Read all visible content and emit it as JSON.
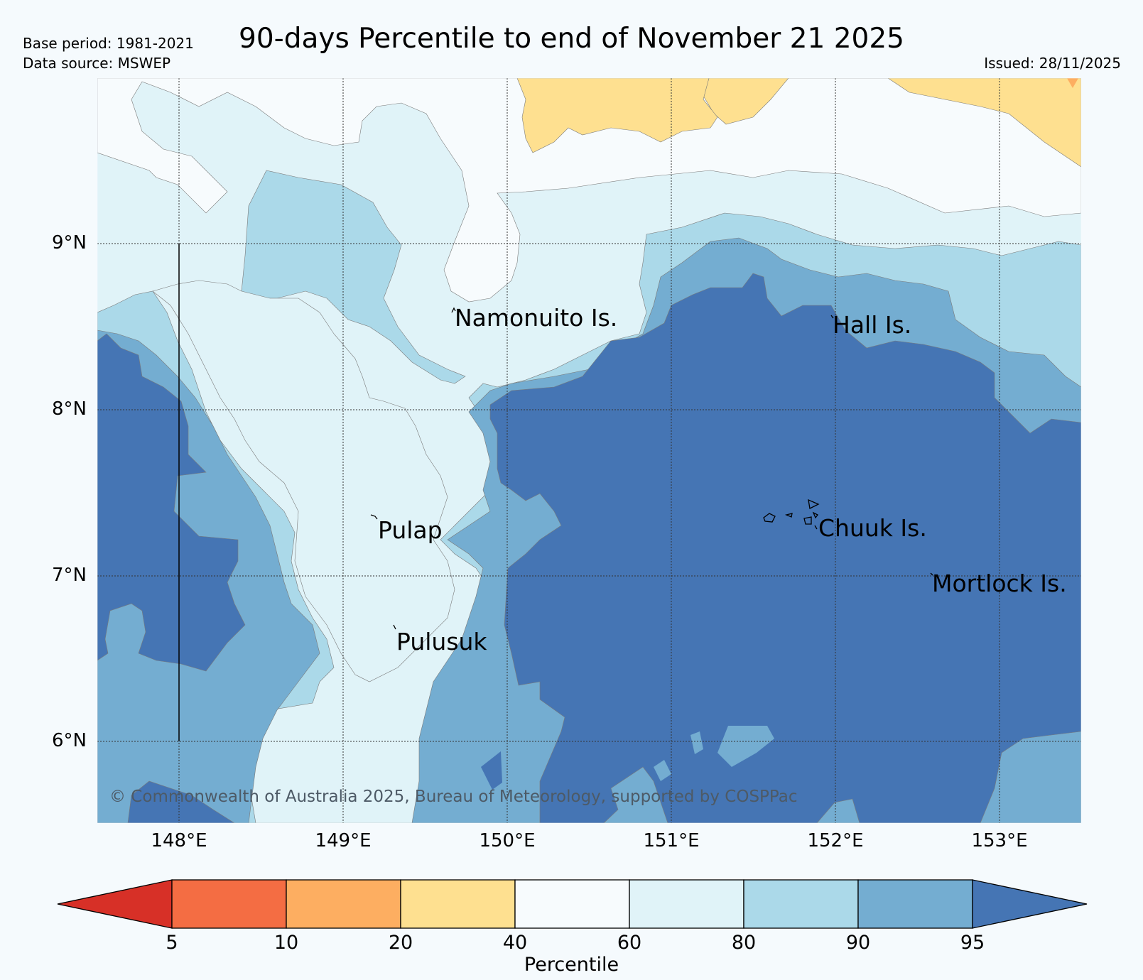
{
  "header": {
    "title": "90-days Percentile to end of November 21 2025",
    "base_period": "Base period: 1981-2021",
    "data_source": "Data source: MSWEP",
    "issued": "Issued: 28/11/2025"
  },
  "map": {
    "lat_labels": [
      "9°N",
      "8°N",
      "7°N",
      "6°N"
    ],
    "lon_labels": [
      "148°E",
      "149°E",
      "150°E",
      "151°E",
      "152°E",
      "153°E"
    ],
    "places": [
      "Namonuito Is.",
      "Hall Is.",
      "Pulap",
      "Chuuk Is.",
      "Mortlock Is.",
      "Pulusuk"
    ],
    "copyright": "© Commonwealth of Australia 2025, Bureau of Meteorology, supported by COSPPac"
  },
  "colorbar": {
    "ticks": [
      "5",
      "10",
      "20",
      "40",
      "60",
      "80",
      "90",
      "95"
    ],
    "label": "Percentile",
    "colors": {
      "below_5": "#d73027",
      "5_10": "#f46d43",
      "10_20": "#fdae61",
      "20_40": "#fee090",
      "40_60": "#f7fbfd",
      "60_80": "#e0f3f8",
      "80_90": "#abd9e9",
      "90_95": "#74add1",
      "above_95": "#4575b4"
    }
  }
}
